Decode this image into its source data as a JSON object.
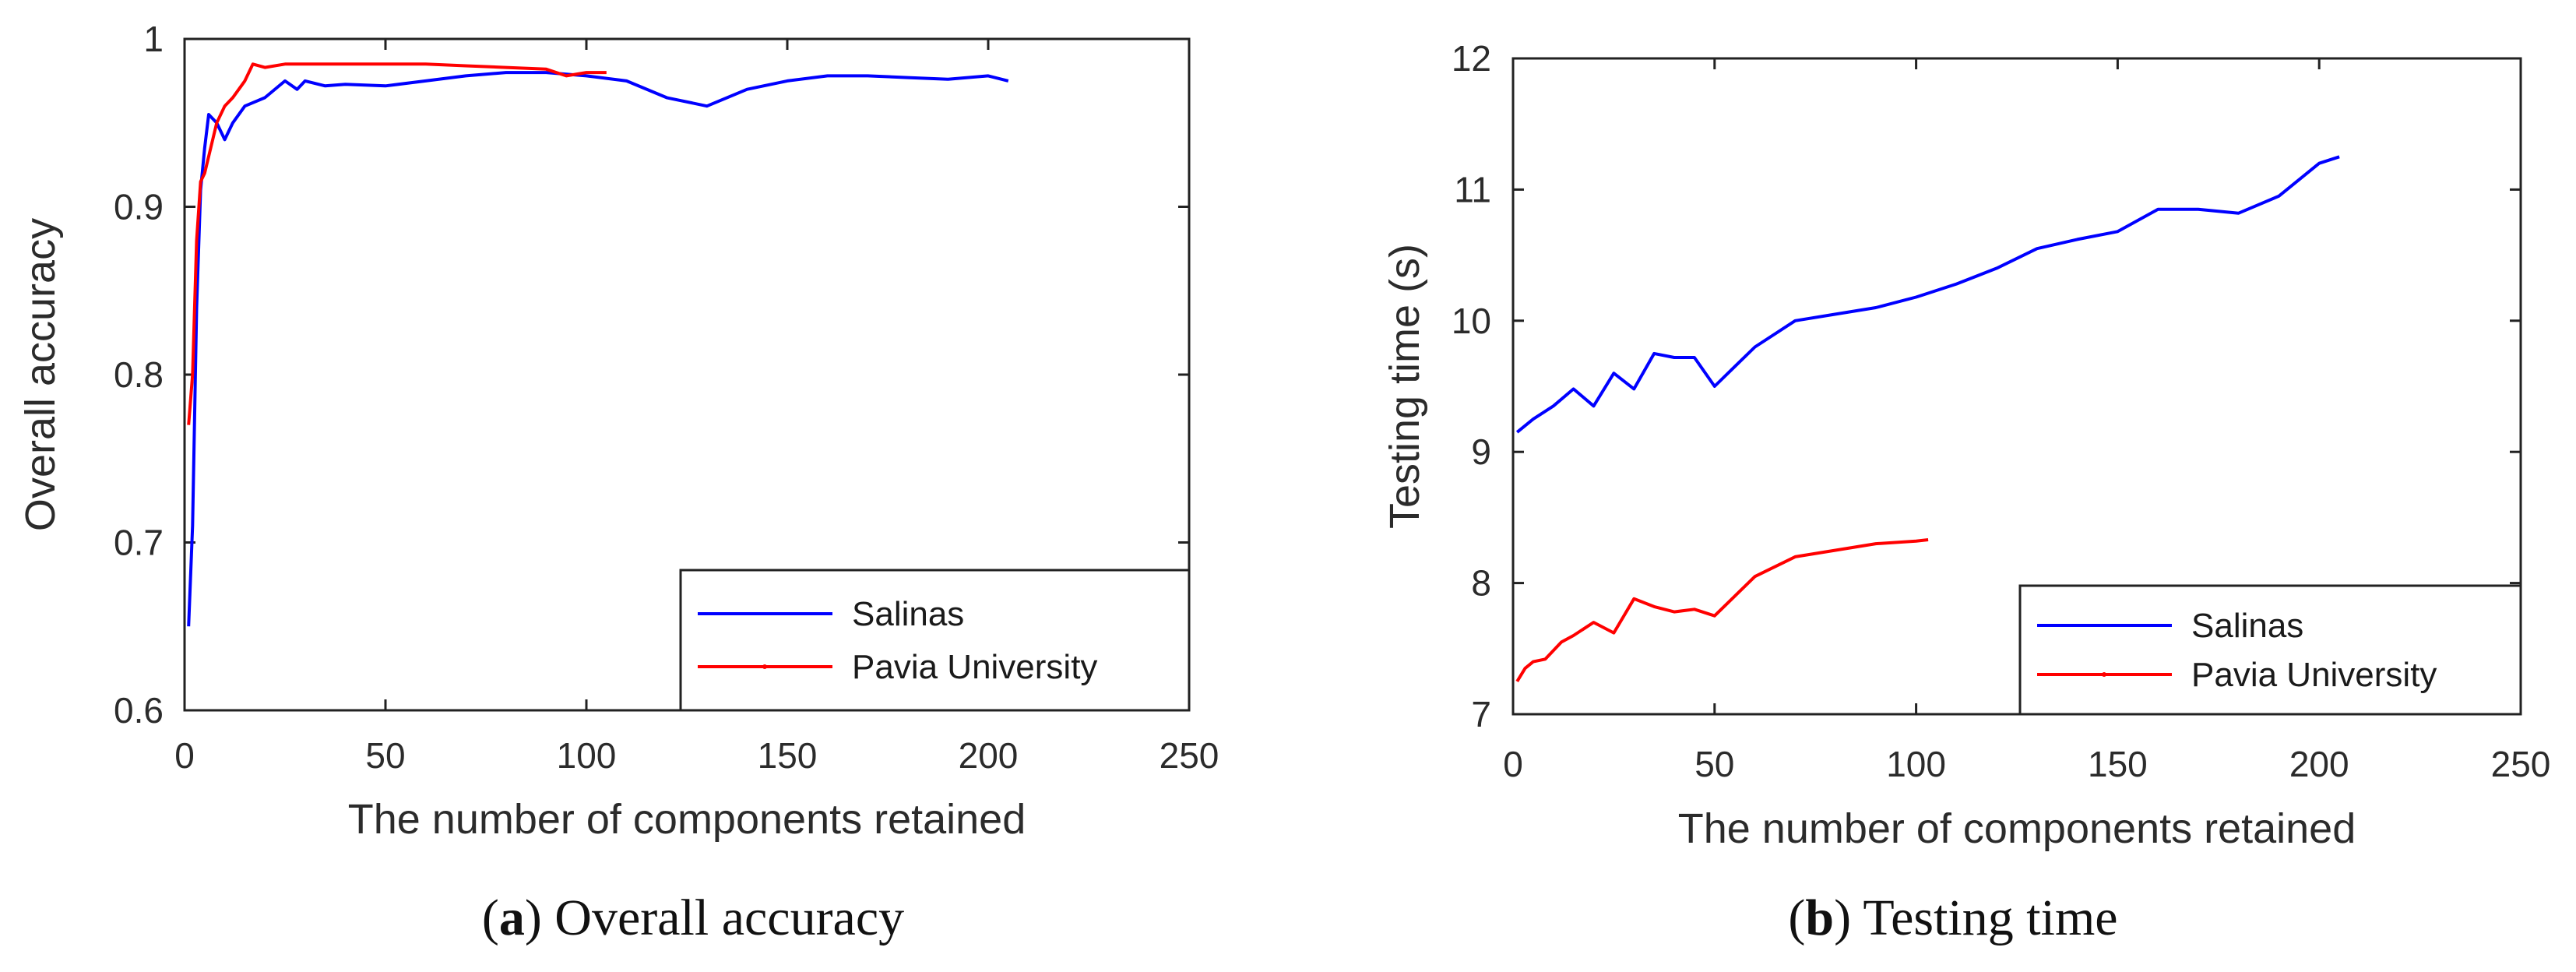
{
  "chart_data": [
    {
      "type": "line",
      "panel_label": "a",
      "caption": "Overall accuracy",
      "xlabel": "The number of components retained",
      "ylabel": "Overall accuracy",
      "xlim": [
        0,
        250
      ],
      "ylim": [
        0.6,
        1.0
      ],
      "xticks": [
        0,
        50,
        100,
        150,
        200,
        250
      ],
      "yticks": [
        0.6,
        0.7,
        0.8,
        0.9,
        1.0
      ],
      "xtick_labels": [
        "0",
        "50",
        "100",
        "150",
        "200",
        "250"
      ],
      "ytick_labels": [
        "0.6",
        "0.7",
        "0.8",
        "0.9",
        "1"
      ],
      "legend_position": "bottom-right",
      "series": [
        {
          "name": "Salinas",
          "color": "#0000ff",
          "points": [
            [
              1,
              0.65
            ],
            [
              2,
              0.71
            ],
            [
              3,
              0.84
            ],
            [
              4,
              0.91
            ],
            [
              5,
              0.935
            ],
            [
              6,
              0.955
            ],
            [
              8,
              0.95
            ],
            [
              10,
              0.94
            ],
            [
              12,
              0.95
            ],
            [
              15,
              0.96
            ],
            [
              20,
              0.965
            ],
            [
              25,
              0.975
            ],
            [
              28,
              0.97
            ],
            [
              30,
              0.975
            ],
            [
              35,
              0.972
            ],
            [
              40,
              0.973
            ],
            [
              50,
              0.972
            ],
            [
              60,
              0.975
            ],
            [
              70,
              0.978
            ],
            [
              80,
              0.98
            ],
            [
              90,
              0.98
            ],
            [
              100,
              0.978
            ],
            [
              110,
              0.975
            ],
            [
              120,
              0.965
            ],
            [
              130,
              0.96
            ],
            [
              140,
              0.97
            ],
            [
              150,
              0.975
            ],
            [
              160,
              0.978
            ],
            [
              170,
              0.978
            ],
            [
              180,
              0.977
            ],
            [
              190,
              0.976
            ],
            [
              200,
              0.978
            ],
            [
              205,
              0.975
            ]
          ]
        },
        {
          "name": "Pavia University",
          "color": "#ff0000",
          "points": [
            [
              1,
              0.77
            ],
            [
              2,
              0.8
            ],
            [
              3,
              0.88
            ],
            [
              4,
              0.915
            ],
            [
              5,
              0.92
            ],
            [
              6,
              0.93
            ],
            [
              8,
              0.95
            ],
            [
              10,
              0.96
            ],
            [
              12,
              0.965
            ],
            [
              15,
              0.975
            ],
            [
              17,
              0.985
            ],
            [
              20,
              0.983
            ],
            [
              25,
              0.985
            ],
            [
              30,
              0.985
            ],
            [
              40,
              0.985
            ],
            [
              50,
              0.985
            ],
            [
              60,
              0.985
            ],
            [
              70,
              0.984
            ],
            [
              80,
              0.983
            ],
            [
              90,
              0.982
            ],
            [
              95,
              0.978
            ],
            [
              100,
              0.98
            ],
            [
              105,
              0.98
            ]
          ]
        }
      ]
    },
    {
      "type": "line",
      "panel_label": "b",
      "caption": "Testing time",
      "xlabel": "The number of components retained",
      "ylabel": "Testing time (s)",
      "xlim": [
        0,
        250
      ],
      "ylim": [
        7,
        12
      ],
      "xticks": [
        0,
        50,
        100,
        150,
        200,
        250
      ],
      "yticks": [
        7,
        8,
        9,
        10,
        11,
        12
      ],
      "xtick_labels": [
        "0",
        "50",
        "100",
        "150",
        "200",
        "250"
      ],
      "ytick_labels": [
        "7",
        "8",
        "9",
        "10",
        "11",
        "12"
      ],
      "legend_position": "bottom-right",
      "series": [
        {
          "name": "Salinas",
          "color": "#0000ff",
          "points": [
            [
              1,
              9.15
            ],
            [
              5,
              9.25
            ],
            [
              10,
              9.35
            ],
            [
              15,
              9.48
            ],
            [
              20,
              9.35
            ],
            [
              25,
              9.6
            ],
            [
              30,
              9.48
            ],
            [
              35,
              9.75
            ],
            [
              40,
              9.72
            ],
            [
              45,
              9.72
            ],
            [
              50,
              9.5
            ],
            [
              55,
              9.65
            ],
            [
              60,
              9.8
            ],
            [
              70,
              10.0
            ],
            [
              80,
              10.05
            ],
            [
              90,
              10.1
            ],
            [
              100,
              10.18
            ],
            [
              110,
              10.28
            ],
            [
              120,
              10.4
            ],
            [
              130,
              10.55
            ],
            [
              140,
              10.62
            ],
            [
              150,
              10.68
            ],
            [
              160,
              10.85
            ],
            [
              170,
              10.85
            ],
            [
              180,
              10.82
            ],
            [
              190,
              10.95
            ],
            [
              200,
              11.2
            ],
            [
              205,
              11.25
            ]
          ]
        },
        {
          "name": "Pavia University",
          "color": "#ff0000",
          "points": [
            [
              1,
              7.25
            ],
            [
              3,
              7.35
            ],
            [
              5,
              7.4
            ],
            [
              8,
              7.42
            ],
            [
              12,
              7.55
            ],
            [
              15,
              7.6
            ],
            [
              20,
              7.7
            ],
            [
              25,
              7.62
            ],
            [
              30,
              7.88
            ],
            [
              35,
              7.82
            ],
            [
              40,
              7.78
            ],
            [
              45,
              7.8
            ],
            [
              50,
              7.75
            ],
            [
              55,
              7.9
            ],
            [
              60,
              8.05
            ],
            [
              70,
              8.2
            ],
            [
              80,
              8.25
            ],
            [
              90,
              8.3
            ],
            [
              100,
              8.32
            ],
            [
              103,
              8.33
            ]
          ]
        }
      ]
    }
  ]
}
